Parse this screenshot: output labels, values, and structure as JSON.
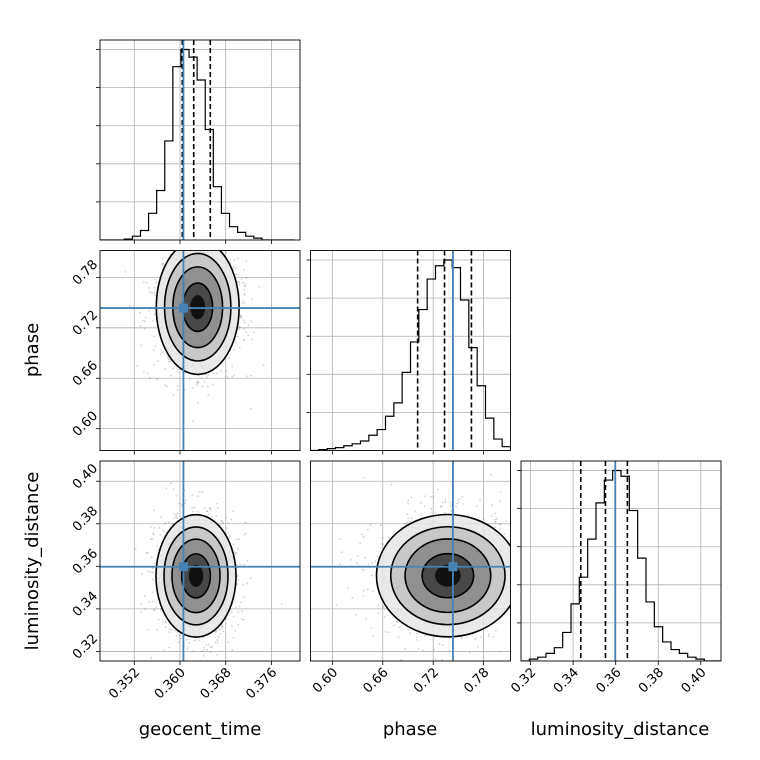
{
  "chart_data": {
    "type": "corner",
    "parameters": [
      "geocent_time",
      "phase",
      "luminosity_distance"
    ],
    "axis_labels": {
      "bottom": [
        "geocent_time",
        "phase",
        "luminosity_distance"
      ],
      "left": [
        "phase",
        "luminosity_distance"
      ]
    },
    "ranges": {
      "geocent_time": [
        0.346,
        0.381
      ],
      "phase": [
        0.574,
        0.812
      ],
      "luminosity_distance": [
        0.3155,
        0.4095
      ]
    },
    "ticks": {
      "geocent_time": [
        "0.352",
        "0.360",
        "0.368",
        "0.376"
      ],
      "phase": [
        "0.60",
        "0.66",
        "0.72",
        "0.78"
      ],
      "luminosity_distance": [
        "0.32",
        "0.34",
        "0.36",
        "0.38",
        "0.40"
      ]
    },
    "truths": {
      "geocent_time": 0.3606,
      "phase": 0.7435,
      "luminosity_distance": 0.3598
    },
    "truth_color": "#4682b4",
    "grid": true,
    "histograms": [
      {
        "parameter": "geocent_time",
        "bin_edges": [
          0.346,
          0.38
        ],
        "counts": [
          0,
          0,
          0,
          0.5,
          2,
          5,
          14,
          26,
          52,
          91,
          100,
          96,
          84,
          58,
          28,
          14,
          7,
          4,
          2,
          1,
          0,
          0,
          0,
          0
        ],
        "quantiles": [
          0.3604,
          0.3624,
          0.3653
        ]
      },
      {
        "parameter": "phase",
        "bin_edges": [
          0.574,
          0.812
        ],
        "counts": [
          0,
          0.5,
          1,
          1.5,
          2.5,
          3.5,
          5,
          8,
          11,
          18,
          25,
          41,
          57,
          74,
          90,
          97,
          100,
          96,
          79,
          54,
          34,
          17,
          6,
          2
        ],
        "quantiles": [
          0.7015,
          0.7335,
          0.7655
        ]
      },
      {
        "parameter": "luminosity_distance",
        "bin_edges": [
          0.3155,
          0.4095
        ],
        "counts": [
          0,
          1,
          2,
          4,
          7,
          15,
          30,
          44,
          64,
          83,
          95,
          100,
          97,
          79,
          54,
          31,
          18,
          10,
          6,
          4,
          2,
          1,
          0,
          0
        ],
        "quantiles": [
          0.3436,
          0.3552,
          0.3655
        ]
      }
    ],
    "contours_2d": [
      {
        "x": "geocent_time",
        "y": "phase",
        "peak": [
          0.3631,
          0.7445
        ],
        "spread": [
          0.0029,
          0.032
        ],
        "correlation": 0.1
      },
      {
        "x": "geocent_time",
        "y": "luminosity_distance",
        "peak": [
          0.3628,
          0.3555
        ],
        "spread": [
          0.0028,
          0.0115
        ],
        "correlation": 0.0
      },
      {
        "x": "phase",
        "y": "luminosity_distance",
        "peak": [
          0.7375,
          0.3556
        ],
        "spread": [
          0.034,
          0.0115
        ],
        "correlation": 0.0
      }
    ]
  }
}
